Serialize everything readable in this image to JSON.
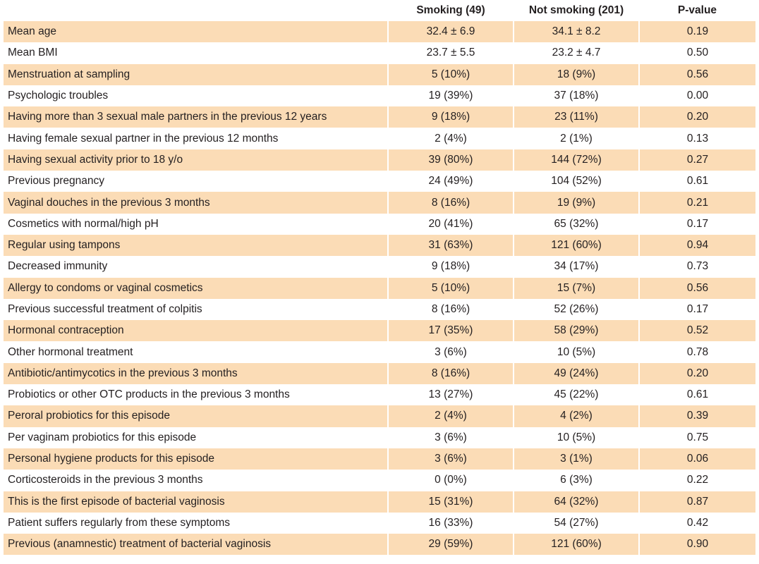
{
  "header": {
    "col0": "",
    "col1": "Smoking (49)",
    "col2": "Not smoking (201)",
    "col3": "P-value"
  },
  "rows": [
    {
      "label": "Mean age",
      "smoking": "32.4 ± 6.9",
      "not_smoking": "34.1 ± 8.2",
      "p": "0.19"
    },
    {
      "label": "Mean BMI",
      "smoking": "23.7 ± 5.5",
      "not_smoking": "23.2 ± 4.7",
      "p": "0.50"
    },
    {
      "label": "Menstruation at sampling",
      "smoking": "5 (10%)",
      "not_smoking": "18 (9%)",
      "p": "0.56"
    },
    {
      "label": "Psychologic troubles",
      "smoking": "19 (39%)",
      "not_smoking": "37 (18%)",
      "p": "0.00"
    },
    {
      "label": "Having more than 3 sexual male partners in the previous 12 years",
      "smoking": "9 (18%)",
      "not_smoking": "23 (11%)",
      "p": "0.20"
    },
    {
      "label": "Having female sexual partner in the previous 12 months",
      "smoking": "2 (4%)",
      "not_smoking": "2 (1%)",
      "p": "0.13"
    },
    {
      "label": "Having sexual activity prior to 18 y/o",
      "smoking": "39 (80%)",
      "not_smoking": "144 (72%)",
      "p": "0.27"
    },
    {
      "label": "Previous pregnancy",
      "smoking": "24 (49%)",
      "not_smoking": "104 (52%)",
      "p": "0.61"
    },
    {
      "label": "Vaginal douches in the previous 3 months",
      "smoking": "8 (16%)",
      "not_smoking": "19 (9%)",
      "p": "0.21"
    },
    {
      "label": "Cosmetics with normal/high pH",
      "smoking": "20 (41%)",
      "not_smoking": "65 (32%)",
      "p": "0.17"
    },
    {
      "label": "Regular using tampons",
      "smoking": "31 (63%)",
      "not_smoking": "121 (60%)",
      "p": "0.94"
    },
    {
      "label": "Decreased immunity",
      "smoking": "9 (18%)",
      "not_smoking": "34 (17%)",
      "p": "0.73"
    },
    {
      "label": "Allergy to condoms or vaginal cosmetics",
      "smoking": "5 (10%)",
      "not_smoking": "15 (7%)",
      "p": "0.56"
    },
    {
      "label": "Previous successful treatment of colpitis",
      "smoking": "8 (16%)",
      "not_smoking": "52 (26%)",
      "p": "0.17"
    },
    {
      "label": "Hormonal contraception",
      "smoking": "17 (35%)",
      "not_smoking": "58 (29%)",
      "p": "0.52"
    },
    {
      "label": "Other hormonal treatment",
      "smoking": "3 (6%)",
      "not_smoking": "10 (5%)",
      "p": "0.78"
    },
    {
      "label": "Antibiotic/antimycotics in the previous 3 months",
      "smoking": "8 (16%)",
      "not_smoking": "49 (24%)",
      "p": "0.20"
    },
    {
      "label": "Probiotics or other OTC products in the previous 3 months",
      "smoking": "13 (27%)",
      "not_smoking": "45 (22%)",
      "p": "0.61"
    },
    {
      "label": "Peroral probiotics for this episode",
      "smoking": "2 (4%)",
      "not_smoking": "4 (2%)",
      "p": "0.39"
    },
    {
      "label": "Per vaginam probiotics for this episode",
      "smoking": "3 (6%)",
      "not_smoking": "10 (5%)",
      "p": "0.75"
    },
    {
      "label": "Personal hygiene products for this episode",
      "smoking": "3 (6%)",
      "not_smoking": "3 (1%)",
      "p": "0.06"
    },
    {
      "label": "Corticosteroids in the previous 3 months",
      "smoking": "0 (0%)",
      "not_smoking": "6 (3%)",
      "p": "0.22"
    },
    {
      "label": "This is the first episode of bacterial vaginosis",
      "smoking": "15 (31%)",
      "not_smoking": "64 (32%)",
      "p": "0.87"
    },
    {
      "label": "Patient suffers regularly from these symptoms",
      "smoking": "16 (33%)",
      "not_smoking": "54 (27%)",
      "p": "0.42"
    },
    {
      "label": "Previous (anamnestic) treatment of bacterial vaginosis",
      "smoking": "29 (59%)",
      "not_smoking": "121 (60%)",
      "p": "0.90"
    }
  ],
  "colors": {
    "stripe": "#fbdcb6",
    "text": "#231f20"
  }
}
